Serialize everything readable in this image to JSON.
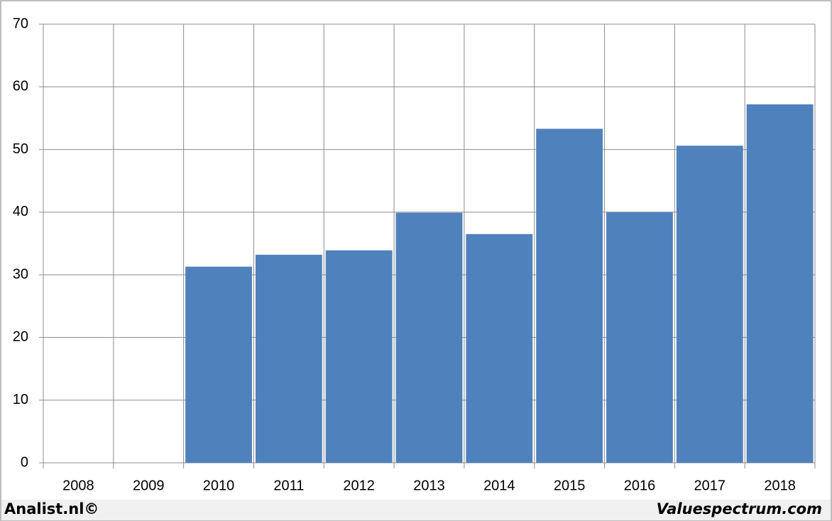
{
  "chart_data": {
    "type": "bar",
    "categories": [
      "2008",
      "2009",
      "2010",
      "2011",
      "2012",
      "2013",
      "2014",
      "2015",
      "2016",
      "2017",
      "2018"
    ],
    "values": [
      null,
      null,
      31.3,
      33.2,
      33.9,
      39.9,
      36.5,
      53.3,
      40.0,
      50.6,
      57.2
    ],
    "color": "#4f81bd",
    "ylim": [
      0,
      70
    ],
    "yticks": [
      0,
      10,
      20,
      30,
      40,
      50,
      60,
      70
    ],
    "grid": true
  },
  "footer": {
    "left": "Analist.nl©",
    "right": "Valuespectrum.com"
  }
}
